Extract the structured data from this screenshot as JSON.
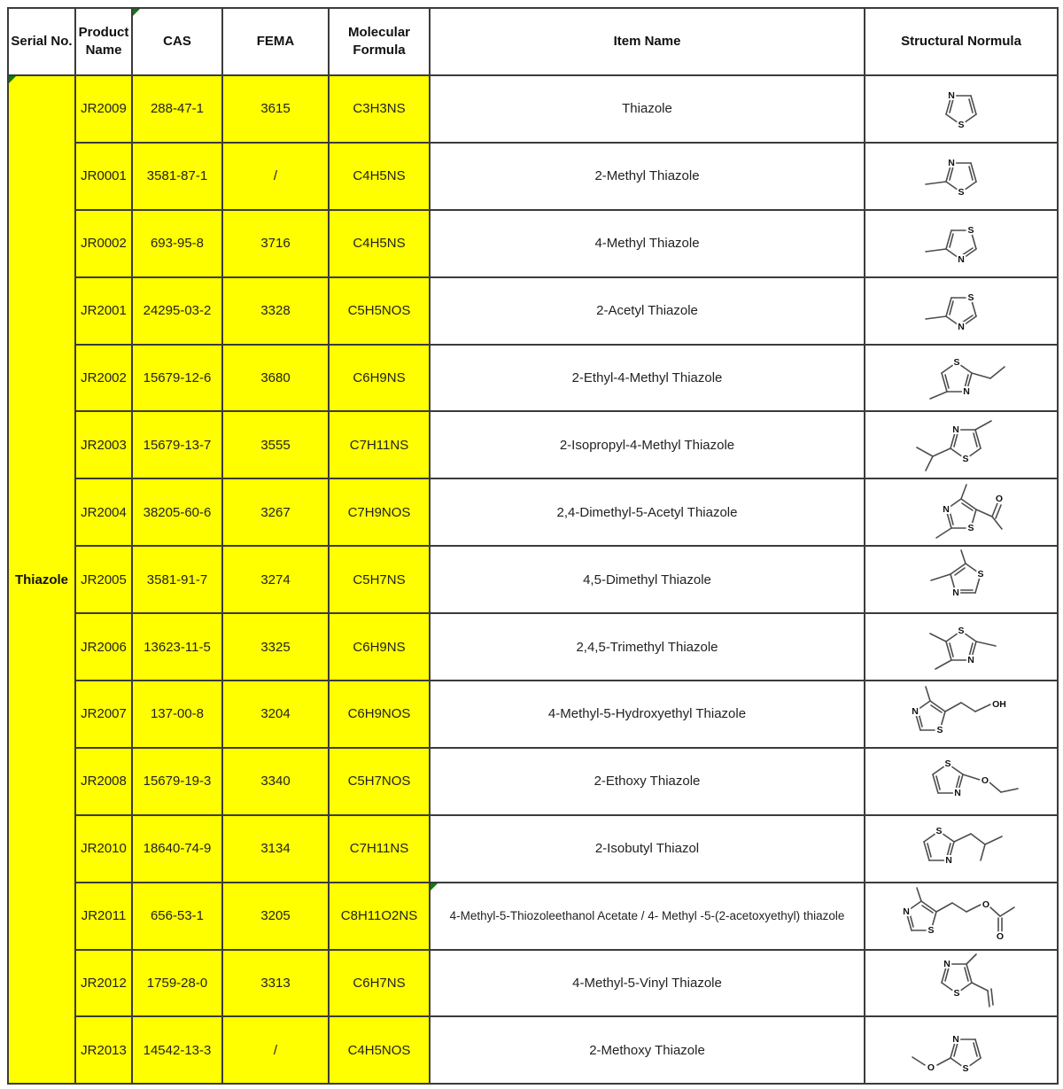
{
  "header": {
    "columns": [
      "Serial No.",
      "Product Name",
      "CAS",
      "FEMA",
      "Molecular Formula",
      "Item Name",
      "Structural Normula"
    ]
  },
  "serial_group": "Thiazole",
  "rows": [
    {
      "product": "JR2009",
      "cas": "288-47-1",
      "fema": "3615",
      "formula": "C3H3NS",
      "item": "Thiazole",
      "structure": "thiazole-ring"
    },
    {
      "product": "JR0001",
      "cas": "3581-87-1",
      "fema": "/",
      "formula": "C4H5NS",
      "item": "2-Methyl Thiazole",
      "structure": "2-methyl-thiazole-ring"
    },
    {
      "product": "JR0002",
      "cas": "693-95-8",
      "fema": "3716",
      "formula": "C4H5NS",
      "item": "4-Methyl Thiazole",
      "structure": "4-methyl-thiazole-ring"
    },
    {
      "product": "JR2001",
      "cas": "24295-03-2",
      "fema": "3328",
      "formula": "C5H5NOS",
      "item": "2-Acetyl Thiazole",
      "structure": "2-acetyl-thiazole-ring"
    },
    {
      "product": "JR2002",
      "cas": "15679-12-6",
      "fema": "3680",
      "formula": "C6H9NS",
      "item": "2-Ethyl-4-Methyl Thiazole",
      "structure": "2-ethyl-4-methyl-thiazole-ring"
    },
    {
      "product": "JR2003",
      "cas": "15679-13-7",
      "fema": "3555",
      "formula": "C7H11NS",
      "item": "2-Isopropyl-4-Methyl Thiazole",
      "structure": "2-isopropyl-4-methyl-thiazole-ring"
    },
    {
      "product": "JR2004",
      "cas": "38205-60-6",
      "fema": "3267",
      "formula": "C7H9NOS",
      "item": "2,4-Dimethyl-5-Acetyl Thiazole",
      "structure": "2-4-dimethyl-5-acetyl-thiazole-ring"
    },
    {
      "product": "JR2005",
      "cas": "3581-91-7",
      "fema": "3274",
      "formula": "C5H7NS",
      "item": "4,5-Dimethyl Thiazole",
      "structure": "4-5-dimethyl-thiazole-ring"
    },
    {
      "product": "JR2006",
      "cas": "13623-11-5",
      "fema": "3325",
      "formula": "C6H9NS",
      "item": "2,4,5-Trimethyl Thiazole",
      "structure": "2-4-5-trimethyl-thiazole-ring"
    },
    {
      "product": "JR2007",
      "cas": "137-00-8",
      "fema": "3204",
      "formula": "C6H9NOS",
      "item": "4-Methyl-5-Hydroxyethyl Thiazole",
      "structure": "4-methyl-5-hydroxyethyl-thiazole-ring"
    },
    {
      "product": "JR2008",
      "cas": "15679-19-3",
      "fema": "3340",
      "formula": "C5H7NOS",
      "item": "2-Ethoxy Thiazole",
      "structure": "2-ethoxy-thiazole-ring"
    },
    {
      "product": "JR2010",
      "cas": "18640-74-9",
      "fema": "3134",
      "formula": "C7H11NS",
      "item": "2-Isobutyl Thiazol",
      "structure": "2-isobutyl-thiazole-ring"
    },
    {
      "product": "JR2011",
      "cas": "656-53-1",
      "fema": "3205",
      "formula": "C8H11O2NS",
      "item": "4-Methyl-5-Thiozoleethanol Acetate / 4- Methyl -5-(2-acetoxyethyl) thiazole",
      "structure": "4-methyl-5-acetoxyethyl-thiazole-ring"
    },
    {
      "product": "JR2012",
      "cas": "1759-28-0",
      "fema": "3313",
      "formula": "C6H7NS",
      "item": "4-Methyl-5-Vinyl Thiazole",
      "structure": "4-methyl-5-vinyl-thiazole-ring"
    },
    {
      "product": "JR2013",
      "cas": "14542-13-3",
      "fema": "/",
      "formula": "C4H5NOS",
      "item": "2-Methoxy Thiazole",
      "structure": "2-methoxy-thiazole-ring"
    }
  ],
  "colors": {
    "highlight": "#ffff00",
    "marker_green": "#0a7d0a",
    "border": "#3b3b3b",
    "structure_stroke": "#4d4d4d"
  }
}
